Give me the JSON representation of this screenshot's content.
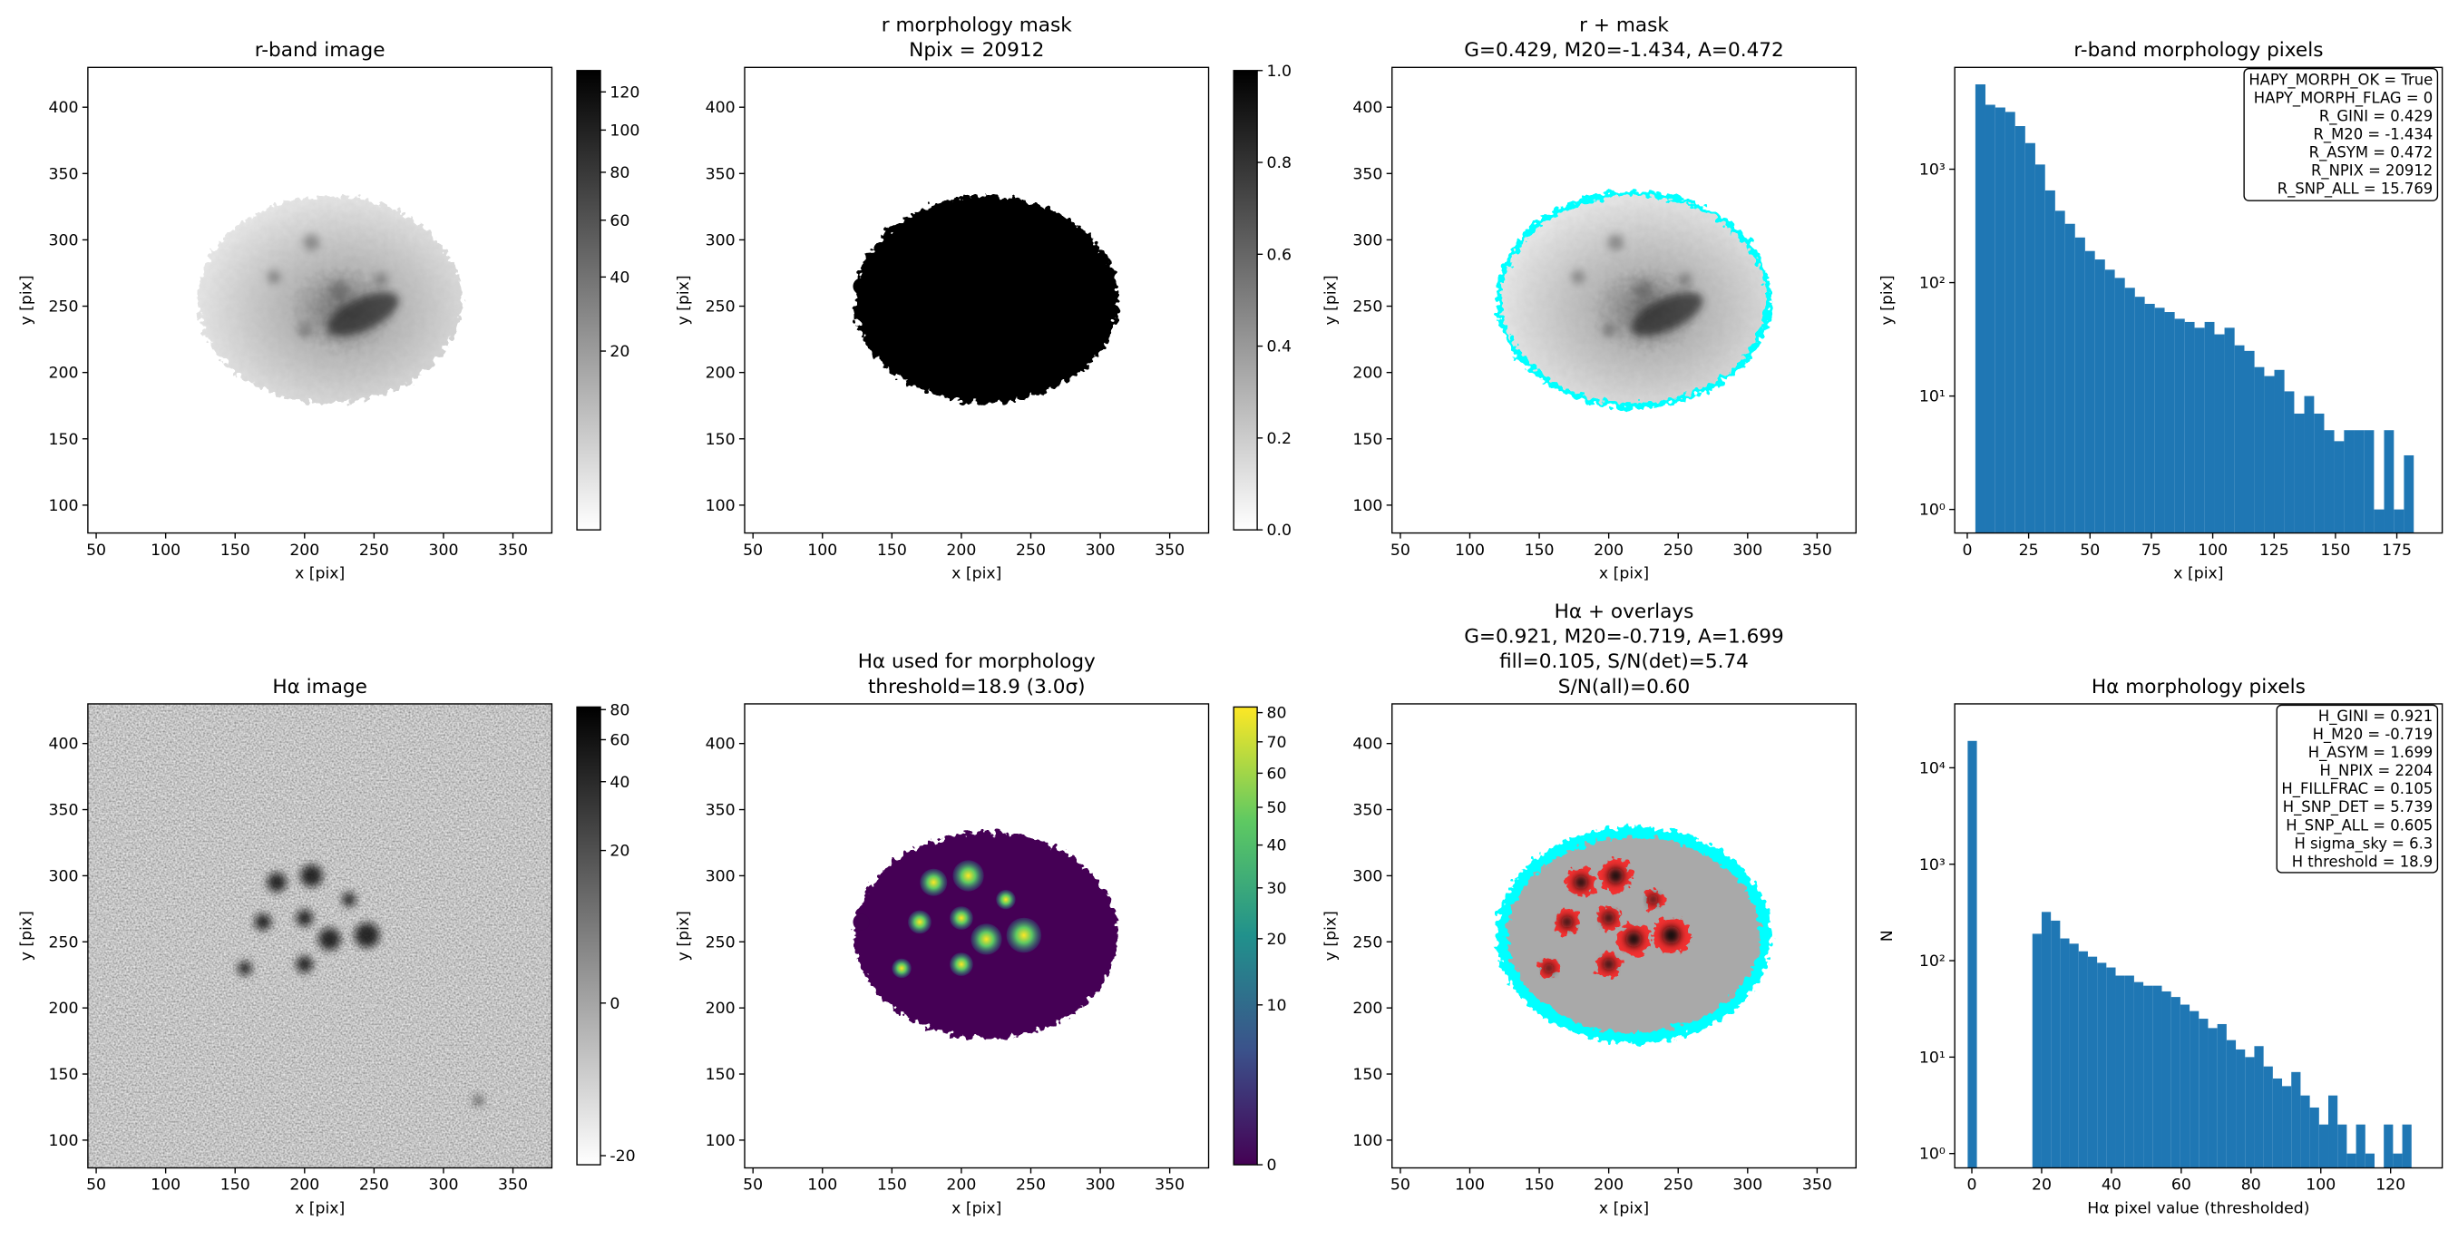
{
  "chart_data": [
    {
      "type": "image",
      "title": [
        "r-band image"
      ],
      "xlabel": "x [pix]",
      "ylabel": "y [pix]",
      "xlim": [
        44,
        378
      ],
      "ylim": [
        79,
        430
      ],
      "xticks": [
        50,
        100,
        150,
        200,
        250,
        300,
        350
      ],
      "yticks": [
        100,
        150,
        200,
        250,
        300,
        350,
        400
      ],
      "cmap": "gray_r",
      "colorbar": {
        "lim": [
          0,
          132
        ],
        "scale": "sqrt",
        "ticks": [
          20,
          40,
          60,
          80,
          100,
          120
        ]
      }
    },
    {
      "type": "image",
      "title": [
        "r morphology mask",
        "Npix = 20912"
      ],
      "xlabel": "x [pix]",
      "ylabel": "y [pix]",
      "xlim": [
        44,
        378
      ],
      "ylim": [
        79,
        430
      ],
      "xticks": [
        50,
        100,
        150,
        200,
        250,
        300,
        350
      ],
      "yticks": [
        100,
        150,
        200,
        250,
        300,
        350,
        400
      ],
      "cmap": "gray_r",
      "colorbar": {
        "lim": [
          0,
          1
        ],
        "scale": "linear",
        "ticks": [
          {
            "value": 0,
            "label": "0.0"
          },
          0.2,
          0.4,
          0.6,
          0.8,
          {
            "value": 1,
            "label": "1.0"
          }
        ]
      }
    },
    {
      "type": "image",
      "title": [
        "r + mask",
        "G=0.429, M20=-1.434, A=0.472"
      ],
      "xlabel": "x [pix]",
      "ylabel": "y [pix]",
      "xlim": [
        44,
        378
      ],
      "ylim": [
        79,
        430
      ],
      "xticks": [
        50,
        100,
        150,
        200,
        250,
        300,
        350
      ],
      "yticks": [
        100,
        150,
        200,
        250,
        300,
        350,
        400
      ],
      "cmap": "gray_r"
    },
    {
      "type": "histogram",
      "title": [
        "r-band morphology pixels"
      ],
      "xlabel": "x [pix]",
      "ylabel": "y [pix]",
      "color": "#1f77b4",
      "log_y": true,
      "bins": [
        3.3,
        7.4,
        11.4,
        15.5,
        19.5,
        23.6,
        27.7,
        31.7,
        35.8,
        39.8,
        43.9,
        48.0,
        52.0,
        56.1,
        60.1,
        64.2,
        68.3,
        72.3,
        76.4,
        80.4,
        84.5,
        88.6,
        92.6,
        96.7,
        100.7,
        104.8,
        108.9,
        112.9,
        117.0,
        121.0,
        125.1,
        129.2,
        133.2,
        137.3,
        141.3,
        145.4,
        149.5,
        153.5,
        157.6,
        161.6,
        165.7,
        169.8,
        173.8,
        177.9,
        181.9
      ],
      "values": [
        5600,
        3700,
        3500,
        3200,
        2400,
        1700,
        1100,
        650,
        430,
        330,
        250,
        190,
        160,
        130,
        110,
        90,
        75,
        65,
        60,
        55,
        48,
        45,
        40,
        45,
        35,
        40,
        28,
        25,
        18,
        15,
        17,
        11,
        7,
        10,
        7,
        5,
        4,
        5,
        5,
        5,
        1,
        5,
        1,
        3
      ],
      "xlim": [
        -5.1,
        193.5
      ],
      "ylim": [
        0.62,
        7900
      ],
      "xticks": [
        0,
        25,
        50,
        75,
        100,
        125,
        150,
        175
      ],
      "yticks": [
        {
          "value": 1,
          "label": "10⁰"
        },
        {
          "value": 10,
          "label": "10¹"
        },
        {
          "value": 100,
          "label": "10²"
        },
        {
          "value": 1000,
          "label": "10³"
        }
      ],
      "annotation": [
        "HAPY_MORPH_OK = True",
        "HAPY_MORPH_FLAG = 0",
        "R_GINI = 0.429",
        "R_M20 = -1.434",
        "R_ASYM = 0.472",
        "R_NPIX = 20912",
        "R_SNP_ALL = 15.769"
      ]
    },
    {
      "type": "image",
      "title": [
        "Hα image"
      ],
      "xlabel": "x [pix]",
      "ylabel": "y [pix]",
      "xlim": [
        44,
        378
      ],
      "ylim": [
        79,
        430
      ],
      "xticks": [
        50,
        100,
        150,
        200,
        250,
        300,
        350
      ],
      "yticks": [
        100,
        150,
        200,
        250,
        300,
        350,
        400
      ],
      "cmap": "gray_r",
      "colorbar": {
        "lim": [
          -22,
          82
        ],
        "scale": "asinh",
        "ticks": [
          -20,
          0,
          20,
          40,
          60,
          80
        ]
      }
    },
    {
      "type": "image",
      "title": [
        "Hα used for morphology",
        "threshold=18.9 (3.0σ)"
      ],
      "xlabel": "x [pix]",
      "ylabel": "y [pix]",
      "xlim": [
        44,
        378
      ],
      "ylim": [
        79,
        430
      ],
      "xticks": [
        50,
        100,
        150,
        200,
        250,
        300,
        350
      ],
      "yticks": [
        100,
        150,
        200,
        250,
        300,
        350,
        400
      ],
      "cmap": "viridis",
      "colorbar": {
        "lim": [
          0,
          82
        ],
        "scale": "sqrt",
        "ticks": [
          0,
          10,
          20,
          30,
          40,
          50,
          60,
          70,
          80
        ]
      }
    },
    {
      "type": "image",
      "title": [
        "Hα + overlays",
        "G=0.921, M20=-0.719, A=1.699",
        "fill=0.105, S/N(det)=5.74",
        "S/N(all)=0.60"
      ],
      "xlabel": "x [pix]",
      "ylabel": "y [pix]",
      "xlim": [
        44,
        378
      ],
      "ylim": [
        79,
        430
      ],
      "xticks": [
        50,
        100,
        150,
        200,
        250,
        300,
        350
      ],
      "yticks": [
        100,
        150,
        200,
        250,
        300,
        350,
        400
      ],
      "cmap": "gray_r"
    },
    {
      "type": "histogram",
      "title": [
        "Hα morphology pixels"
      ],
      "xlabel": "Hα pixel value (thresholded)",
      "ylabel": "N",
      "color": "#1f77b4",
      "log_y": true,
      "bins": [
        -1.2,
        1.45,
        4.1,
        6.75,
        9.4,
        12.05,
        14.7,
        17.35,
        20.0,
        22.65,
        25.3,
        27.95,
        30.6,
        33.25,
        35.9,
        38.55,
        41.2,
        43.85,
        46.5,
        49.15,
        51.8,
        54.45,
        57.1,
        59.75,
        62.4,
        65.05,
        67.7,
        70.35,
        73.0,
        75.65,
        78.3,
        80.95,
        83.6,
        86.25,
        88.9,
        91.55,
        94.2,
        96.85,
        99.5,
        102.15,
        104.8,
        107.45,
        110.1,
        112.75,
        115.4,
        118.05,
        120.7,
        123.35,
        126.0
      ],
      "values": [
        19000,
        0,
        0,
        0,
        0,
        0,
        0,
        190,
        320,
        260,
        170,
        150,
        125,
        110,
        95,
        85,
        70,
        70,
        60,
        55,
        55,
        48,
        42,
        35,
        30,
        25,
        20,
        22,
        15,
        12,
        10,
        13,
        8,
        6,
        5,
        7,
        4,
        3,
        2,
        4,
        2,
        1,
        2,
        1,
        0,
        2,
        1,
        2
      ],
      "xlim": [
        -4.9,
        134.8
      ],
      "ylim": [
        0.71,
        46000
      ],
      "xticks": [
        0,
        20,
        40,
        60,
        80,
        100,
        120
      ],
      "yticks": [
        {
          "value": 1,
          "label": "10⁰"
        },
        {
          "value": 10,
          "label": "10¹"
        },
        {
          "value": 100,
          "label": "10²"
        },
        {
          "value": 1000,
          "label": "10³"
        },
        {
          "value": 10000,
          "label": "10⁴"
        }
      ],
      "annotation": [
        "H_GINI = 0.921",
        "H_M20 = -0.719",
        "H_ASYM = 1.699",
        "H_NPIX = 2204",
        "H_FILLFRAC = 0.105",
        "H_SNP_DET = 5.739",
        "H_SNP_ALL = 0.605",
        "H sigma_sky = 6.3",
        "H threshold = 18.9"
      ]
    }
  ]
}
